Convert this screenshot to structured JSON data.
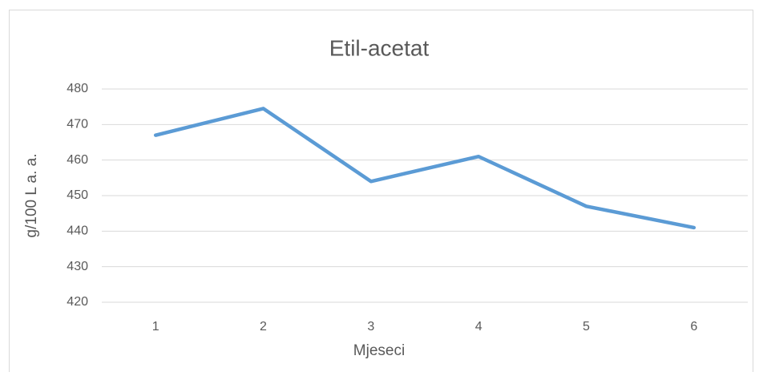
{
  "chart_data": {
    "type": "line",
    "title": "Etil-acetat",
    "x_label": "Mjeseci",
    "y_label": "g/100 L a. a.",
    "categories": [
      "1",
      "2",
      "3",
      "4",
      "5",
      "6"
    ],
    "series": [
      {
        "name": "Etil-acetat",
        "color": "#5b9bd5",
        "values": [
          467,
          474.5,
          454,
          461,
          447,
          441
        ]
      }
    ],
    "ylim": [
      420,
      480
    ],
    "yticks": [
      420,
      430,
      440,
      450,
      460,
      470,
      480
    ],
    "grid": true
  }
}
